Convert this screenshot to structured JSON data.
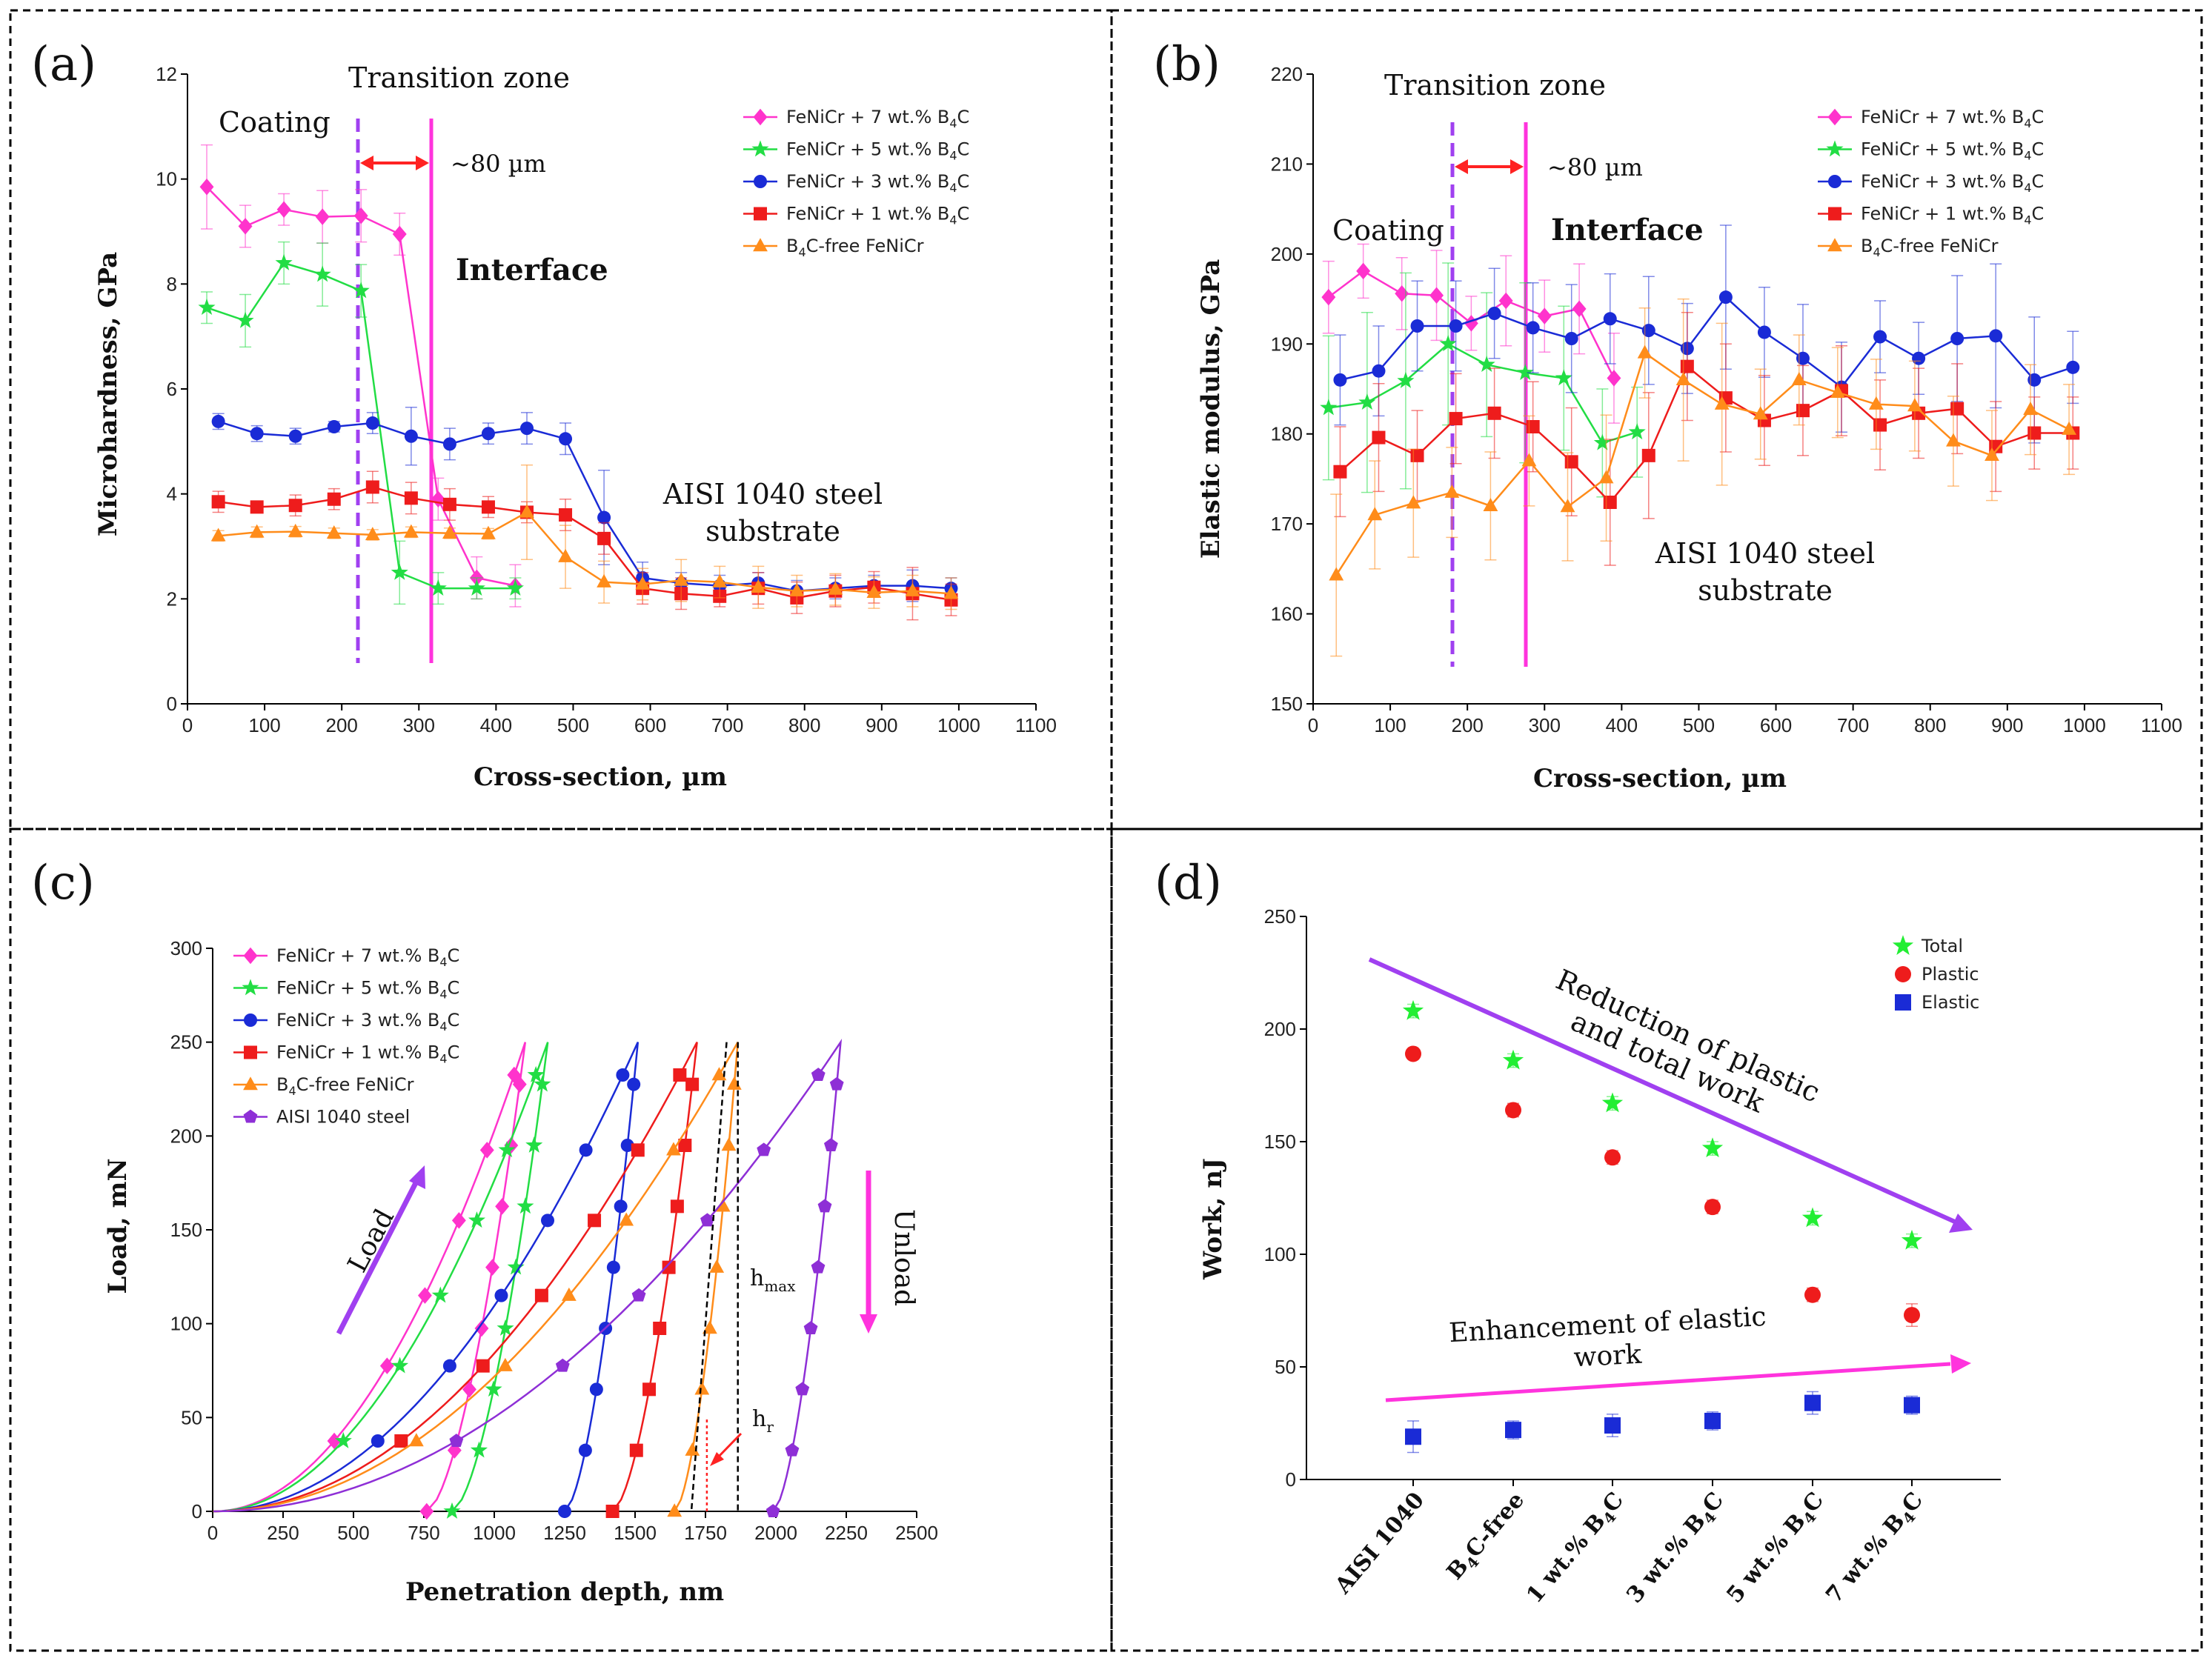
{
  "panels": {
    "a": {
      "label": "(a)",
      "xlabel": "Cross-section, µm",
      "ylabel": "Microhardness, GPa",
      "xlim": [
        0,
        1100
      ],
      "ylim": [
        0,
        12
      ],
      "xticks": [
        "0",
        "100",
        "200",
        "300",
        "400",
        "500",
        "600",
        "700",
        "800",
        "900",
        "1000",
        "1100"
      ],
      "yticks": [
        "0",
        "2",
        "4",
        "6",
        "8",
        "10",
        "12"
      ],
      "annotations": {
        "coating": "Coating",
        "transition": "Transition zone",
        "width": "~80 µm",
        "interface": "Interface",
        "substrate1": "AISI 1040 steel",
        "substrate2": "substrate"
      },
      "legend": {
        "pre": "FeNiCr + ",
        "items": [
          "7 wt.% B",
          "5 wt.% B",
          "3 wt.% B",
          "1 wt.% B"
        ],
        "free_a": "B",
        "free_b": "C-free FeNiCr",
        "sub": "4",
        "c": "C"
      }
    },
    "b": {
      "label": "(b)",
      "xlabel": "Cross-section, µm",
      "ylabel": "Elastic modulus, GPa",
      "xlim": [
        0,
        1100
      ],
      "ylim": [
        150,
        220
      ],
      "xticks": [
        "0",
        "100",
        "200",
        "300",
        "400",
        "500",
        "600",
        "700",
        "800",
        "900",
        "1000",
        "1100"
      ],
      "yticks": [
        "150",
        "160",
        "170",
        "180",
        "190",
        "200",
        "210",
        "220"
      ],
      "annotations": {
        "coating": "Coating",
        "transition": "Transition zone",
        "width": "~80 µm",
        "interface": "Interface",
        "substrate1": "AISI 1040 steel",
        "substrate2": "substrate"
      }
    },
    "c": {
      "label": "(c)",
      "xlabel": "Penetration depth, nm",
      "ylabel": "Load, mN",
      "xlim": [
        0,
        2500
      ],
      "ylim": [
        0,
        300
      ],
      "xticks": [
        "0",
        "250",
        "500",
        "750",
        "1000",
        "1250",
        "1500",
        "1750",
        "2000",
        "2250",
        "2500"
      ],
      "yticks": [
        "0",
        "50",
        "100",
        "150",
        "200",
        "250",
        "300"
      ],
      "annotations": {
        "load": "Load",
        "unload": "Unload",
        "hmax": "h",
        "hmax_sub": "max",
        "hr": "h",
        "hr_sub": "r"
      },
      "legend_steel": "AISI 1040 steel"
    },
    "d": {
      "label": "(d)",
      "ylabel": "Work, nJ",
      "ylim": [
        0,
        250
      ],
      "yticks": [
        "0",
        "50",
        "100",
        "150",
        "200",
        "250"
      ],
      "categories": [
        "AISI 1040",
        "B4C-free",
        "1 wt.% B4C",
        "3 wt.% B4C",
        "5 wt.% B4C",
        "7 wt.% B4C"
      ],
      "cat_labels": [
        [
          "AISI 1040",
          "",
          ""
        ],
        [
          "B",
          "4",
          "C-free"
        ],
        [
          "1 wt.% B",
          "4",
          "C"
        ],
        [
          "3 wt.% B",
          "4",
          "C"
        ],
        [
          "5 wt.% B",
          "4",
          "C"
        ],
        [
          "7 wt.% B",
          "4",
          "C"
        ]
      ],
      "legend": [
        "Total",
        "Plastic",
        "Elastic"
      ],
      "annotations": {
        "reduction1": "Reduction of plastic",
        "reduction2": "and total work",
        "enh1": "Enhancement of elastic",
        "enh2": "work"
      }
    }
  },
  "colors": {
    "p7": "#ff33cc",
    "p5": "#22dd44",
    "p3": "#1a2bd6",
    "p1": "#ee1c1c",
    "p0": "#ff8c1a",
    "steel": "#8e2fd6",
    "magenta": "#ff33dd",
    "purple": "#a040f0"
  },
  "chart_data": [
    {
      "type": "line",
      "panel": "a",
      "title": "",
      "xlabel": "Cross-section, µm",
      "ylabel": "Microhardness, GPa",
      "xlim": [
        0,
        1100
      ],
      "ylim": [
        0,
        12
      ],
      "series": [
        {
          "name": "FeNiCr + 7 wt.% B4C",
          "x": [
            25,
            75,
            125,
            175,
            225,
            275,
            325,
            375,
            425
          ],
          "values": [
            9.85,
            9.1,
            9.42,
            9.28,
            9.3,
            8.95,
            3.9,
            2.4,
            2.25
          ],
          "err": [
            0.8,
            0.4,
            0.3,
            0.5,
            0.5,
            0.4,
            0.4,
            0.4,
            0.4
          ]
        },
        {
          "name": "FeNiCr + 5 wt.% B4C",
          "x": [
            25,
            75,
            125,
            175,
            225,
            275,
            325,
            375,
            425
          ],
          "values": [
            7.55,
            7.3,
            8.4,
            8.18,
            7.87,
            2.5,
            2.2,
            2.2,
            2.2
          ],
          "err": [
            0.3,
            0.5,
            0.4,
            0.6,
            0.5,
            0.6,
            0.3,
            0.2,
            0.2
          ]
        },
        {
          "name": "FeNiCr + 3 wt.% B4C",
          "x": [
            40,
            90,
            140,
            190,
            240,
            290,
            340,
            390,
            440,
            490,
            540,
            590,
            640,
            690,
            740,
            790,
            840,
            890,
            940,
            990
          ],
          "values": [
            5.38,
            5.15,
            5.1,
            5.28,
            5.35,
            5.1,
            4.95,
            5.15,
            5.25,
            5.05,
            3.55,
            2.4,
            2.3,
            2.25,
            2.3,
            2.15,
            2.2,
            2.25,
            2.25,
            2.2
          ],
          "err": [
            0.15,
            0.15,
            0.15,
            0.1,
            0.2,
            0.55,
            0.3,
            0.2,
            0.3,
            0.3,
            0.9,
            0.3,
            0.2,
            0.2,
            0.2,
            0.2,
            0.2,
            0.2,
            0.3,
            0.2
          ]
        },
        {
          "name": "FeNiCr + 1 wt.% B4C",
          "x": [
            40,
            90,
            140,
            190,
            240,
            290,
            340,
            390,
            440,
            490,
            540,
            590,
            640,
            690,
            740,
            790,
            840,
            890,
            940,
            990
          ],
          "values": [
            3.85,
            3.75,
            3.78,
            3.9,
            4.13,
            3.92,
            3.8,
            3.75,
            3.65,
            3.6,
            3.15,
            2.2,
            2.1,
            2.05,
            2.2,
            2.02,
            2.15,
            2.22,
            2.1,
            1.98
          ],
          "err": [
            0.2,
            0.1,
            0.2,
            0.2,
            0.3,
            0.3,
            0.3,
            0.2,
            0.2,
            0.3,
            0.3,
            0.3,
            0.3,
            0.2,
            0.3,
            0.3,
            0.3,
            0.3,
            0.5,
            0.3
          ]
        },
        {
          "name": "B4C-free FeNiCr",
          "x": [
            40,
            90,
            140,
            190,
            240,
            290,
            340,
            390,
            440,
            490,
            540,
            590,
            640,
            690,
            740,
            790,
            840,
            890,
            940,
            990
          ],
          "values": [
            3.2,
            3.27,
            3.28,
            3.25,
            3.22,
            3.27,
            3.25,
            3.24,
            3.65,
            2.8,
            2.32,
            2.28,
            2.35,
            2.32,
            2.22,
            2.15,
            2.18,
            2.12,
            2.15,
            2.1
          ],
          "err": [
            0.1,
            0.1,
            0.1,
            0.1,
            0.1,
            0.1,
            0.1,
            0.1,
            0.9,
            0.6,
            0.4,
            0.3,
            0.4,
            0.3,
            0.4,
            0.3,
            0.3,
            0.3,
            0.3,
            0.3
          ]
        }
      ]
    },
    {
      "type": "line",
      "panel": "b",
      "title": "",
      "xlabel": "Cross-section, µm",
      "ylabel": "Elastic modulus, GPa",
      "xlim": [
        0,
        1100
      ],
      "ylim": [
        150,
        220
      ],
      "series": [
        {
          "name": "FeNiCr + 7 wt.% B4C",
          "x": [
            20,
            65,
            115,
            160,
            205,
            250,
            300,
            345,
            390
          ],
          "values": [
            195.2,
            198.1,
            195.6,
            195.4,
            192.3,
            194.8,
            193.1,
            193.9,
            186.2
          ],
          "err": [
            4,
            3,
            4,
            5,
            3,
            5,
            4,
            5,
            5
          ]
        },
        {
          "name": "FeNiCr + 5 wt.% B4C",
          "x": [
            20,
            70,
            120,
            175,
            225,
            275,
            325,
            375,
            420
          ],
          "values": [
            182.9,
            183.5,
            185.9,
            190.0,
            187.7,
            186.8,
            186.2,
            179.0,
            180.2
          ],
          "err": [
            8,
            10,
            12,
            9,
            8,
            10,
            8,
            6,
            5
          ]
        },
        {
          "name": "FeNiCr + 3 wt.% B4C",
          "x": [
            35,
            85,
            135,
            185,
            235,
            285,
            335,
            385,
            435,
            485,
            535,
            585,
            635,
            685,
            735,
            785,
            835,
            885,
            935,
            985
          ],
          "values": [
            186.0,
            187.0,
            192.0,
            192.0,
            193.4,
            191.8,
            190.6,
            192.8,
            191.5,
            189.5,
            195.2,
            191.3,
            188.4,
            185.2,
            190.8,
            188.4,
            190.6,
            190.9,
            186.0,
            187.4
          ],
          "err": [
            5,
            5,
            5,
            5,
            5,
            5,
            6,
            5,
            6,
            5,
            8,
            5,
            6,
            5,
            4,
            4,
            7,
            8,
            7,
            4
          ]
        },
        {
          "name": "FeNiCr + 1 wt.% B4C",
          "x": [
            35,
            85,
            135,
            185,
            235,
            285,
            335,
            385,
            435,
            485,
            535,
            585,
            635,
            685,
            735,
            785,
            835,
            885,
            935,
            985
          ],
          "values": [
            175.8,
            179.6,
            177.6,
            181.7,
            182.3,
            180.8,
            176.9,
            172.4,
            177.6,
            187.5,
            184.0,
            181.5,
            182.6,
            184.8,
            181.0,
            182.3,
            182.8,
            178.6,
            180.1,
            180.1
          ],
          "err": [
            5,
            6,
            5,
            5,
            5,
            5,
            6,
            7,
            7,
            6,
            6,
            5,
            5,
            5,
            5,
            5,
            5,
            5,
            4,
            4
          ]
        },
        {
          "name": "B4C-free FeNiCr",
          "x": [
            30,
            80,
            130,
            180,
            230,
            280,
            330,
            380,
            430,
            480,
            530,
            580,
            630,
            680,
            730,
            780,
            830,
            880,
            930,
            980
          ],
          "values": [
            164.3,
            171.0,
            172.3,
            173.5,
            172.0,
            177.0,
            171.9,
            175.1,
            189.0,
            186.0,
            183.3,
            182.2,
            186.0,
            184.6,
            183.3,
            183.1,
            179.2,
            177.6,
            182.7,
            180.5
          ],
          "err": [
            9,
            6,
            6,
            5,
            6,
            5,
            6,
            7,
            5,
            9,
            9,
            5,
            5,
            5,
            5,
            5,
            5,
            5,
            5,
            5
          ]
        }
      ]
    },
    {
      "type": "line",
      "panel": "c",
      "title": "",
      "xlabel": "Penetration depth, nm",
      "ylabel": "Load, mN",
      "xlim": [
        0,
        2500
      ],
      "ylim": [
        0,
        300
      ],
      "series": [
        {
          "name": "FeNiCr + 7 wt.% B4C",
          "hmax": 1110,
          "hr": 760,
          "k": 0.000204
        },
        {
          "name": "FeNiCr + 5 wt.% B4C",
          "hmax": 1190,
          "hr": 850,
          "k": 0.000178
        },
        {
          "name": "FeNiCr + 3 wt.% B4C",
          "hmax": 1510,
          "hr": 1250,
          "k": 0.00011
        },
        {
          "name": "FeNiCr + 1 wt.% B4C",
          "hmax": 1720,
          "hr": 1420,
          "k": 8.5e-05
        },
        {
          "name": "B4C-free FeNiCr",
          "hmax": 1865,
          "hr": 1640,
          "k": 7.2e-05
        },
        {
          "name": "AISI 1040 steel",
          "hmax": 2230,
          "hr": 1990,
          "k": 5.04e-05
        }
      ]
    },
    {
      "type": "scatter",
      "panel": "d",
      "title": "",
      "ylabel": "Work, nJ",
      "ylim": [
        0,
        250
      ],
      "categories": [
        "AISI 1040",
        "B4C-free",
        "1 wt.% B4C",
        "3 wt.% B4C",
        "5 wt.% B4C",
        "7 wt.% B4C"
      ],
      "series": [
        {
          "name": "Total",
          "values": [
            208,
            186,
            167,
            147,
            116,
            106
          ],
          "err": [
            3,
            3,
            3,
            3,
            3,
            3
          ]
        },
        {
          "name": "Plastic",
          "values": [
            189,
            164,
            143,
            121,
            82,
            73
          ],
          "err": [
            2,
            3,
            3,
            3,
            3,
            5
          ]
        },
        {
          "name": "Elastic",
          "values": [
            19,
            22,
            24,
            26,
            34,
            33
          ],
          "err": [
            7,
            4,
            5,
            4,
            5,
            4
          ]
        }
      ]
    }
  ]
}
